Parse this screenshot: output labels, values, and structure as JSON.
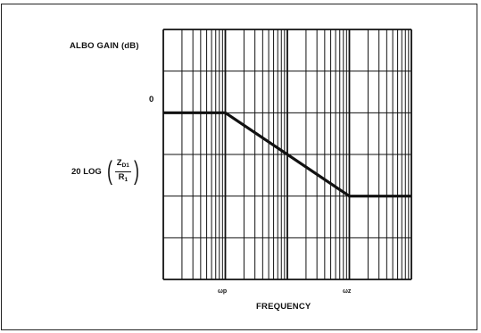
{
  "chart_data": {
    "type": "line",
    "ylabel": "ALBO GAIN (dB)",
    "xlabel": "FREQUENCY",
    "x_scale": "log",
    "x_ticks": [
      {
        "label": "ωp",
        "decade": 1
      },
      {
        "label": "ωz",
        "decade": 3
      }
    ],
    "y_ticks": [
      {
        "label": "0",
        "level": 0
      },
      {
        "label_prefix": "20 LOG",
        "label_num": "Z",
        "label_num_sub": "D1",
        "label_den": "R",
        "label_den_sub": "1",
        "level": -2
      }
    ],
    "x_decades": 4,
    "y_divisions": 6,
    "grid": true,
    "series": [
      {
        "points": [
          [
            0,
            0
          ],
          [
            1,
            0
          ],
          [
            3,
            -2
          ],
          [
            4,
            -2
          ]
        ]
      }
    ]
  }
}
